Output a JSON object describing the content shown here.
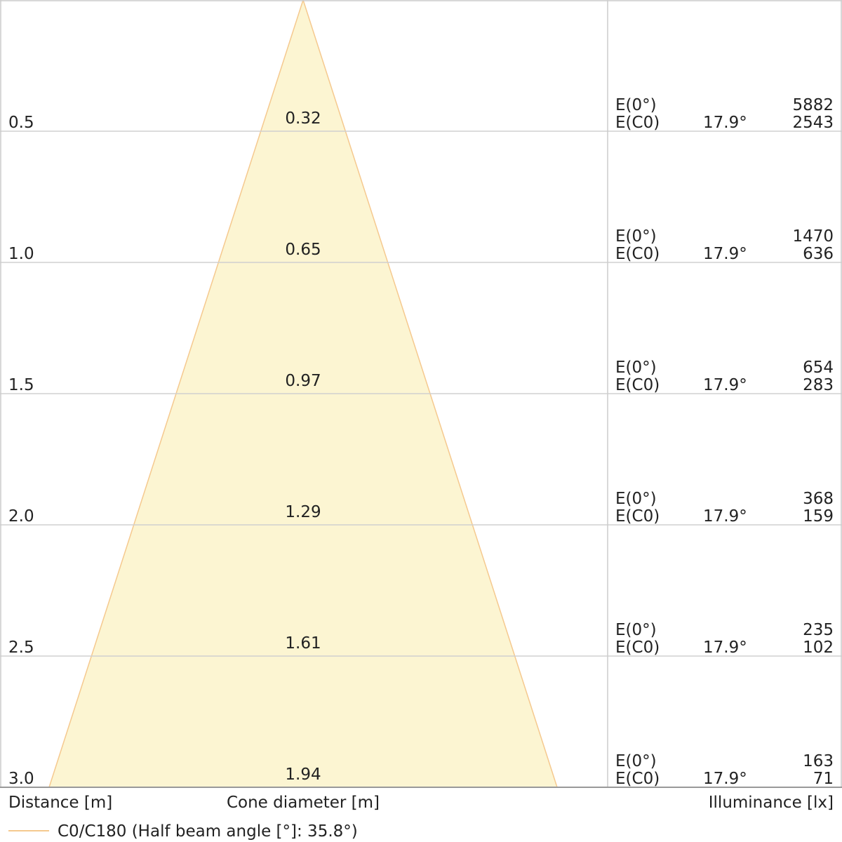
{
  "chart_data": {
    "type": "cone-diagram",
    "distance_label": "Distance [m]",
    "cone_label": "Cone diameter [m]",
    "illuminance_label": "Illuminance [lx]",
    "legend": {
      "text": "C0/C180 (Half beam angle [°]: 35.8°)",
      "color": "#f5c98f"
    },
    "cone_fill": "#fcf5d2",
    "cone_stroke": "#f5c98f",
    "distance_range": [
      0,
      3.0
    ],
    "rows": [
      {
        "distance": "0.5",
        "diameter": "0.32",
        "e0_label": "E(0°)",
        "ec0_label": "E(C0)",
        "angle": "17.9°",
        "e0": "5882",
        "ec0": "2543"
      },
      {
        "distance": "1.0",
        "diameter": "0.65",
        "e0_label": "E(0°)",
        "ec0_label": "E(C0)",
        "angle": "17.9°",
        "e0": "1470",
        "ec0": "636"
      },
      {
        "distance": "1.5",
        "diameter": "0.97",
        "e0_label": "E(0°)",
        "ec0_label": "E(C0)",
        "angle": "17.9°",
        "e0": "654",
        "ec0": "283"
      },
      {
        "distance": "2.0",
        "diameter": "1.29",
        "e0_label": "E(0°)",
        "ec0_label": "E(C0)",
        "angle": "17.9°",
        "e0": "368",
        "ec0": "159"
      },
      {
        "distance": "2.5",
        "diameter": "1.61",
        "e0_label": "E(0°)",
        "ec0_label": "E(C0)",
        "angle": "17.9°",
        "e0": "235",
        "ec0": "102"
      },
      {
        "distance": "3.0",
        "diameter": "1.94",
        "e0_label": "E(0°)",
        "ec0_label": "E(C0)",
        "angle": "17.9°",
        "e0": "163",
        "ec0": "71"
      }
    ]
  }
}
